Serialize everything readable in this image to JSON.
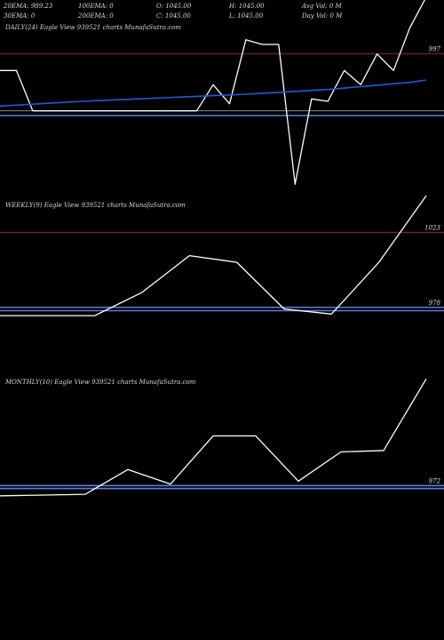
{
  "header": {
    "row1": [
      {
        "label": "20EMA: 989.23"
      },
      {
        "label": "100EMA: 0"
      },
      {
        "label": "O: 1045.00"
      },
      {
        "label": "H: 1045.00"
      },
      {
        "label": "Avg Vol: 0  M"
      }
    ],
    "row2": [
      {
        "label": "30EMA: 0"
      },
      {
        "label": "200EMA: 0"
      },
      {
        "label": "C: 1045.00"
      },
      {
        "label": "L: 1045.00"
      },
      {
        "label": "Day Vol: 0  M"
      }
    ]
  },
  "colors": {
    "background": "#000000",
    "price_line": "#ffffff",
    "ema_line": "#1e5bd6",
    "level_line": "#8b2a1a",
    "base_line": "#5a7fd8",
    "grey_line": "#8a8a8a"
  },
  "chart_data": [
    {
      "type": "line",
      "title": "DAILY(24) Eagle  View  939521 charts MunafaSutra.com",
      "ylim": [
        935,
        1010
      ],
      "x": [
        0,
        1,
        2,
        3,
        4,
        5,
        6,
        7,
        8,
        9,
        10,
        11,
        12,
        13,
        14,
        15,
        16,
        17,
        18,
        19,
        20,
        21,
        22,
        23,
        24,
        25,
        26
      ],
      "series": [
        {
          "values": [
            990,
            990,
            973,
            973,
            973,
            973,
            973,
            973,
            973,
            973,
            973,
            973,
            973,
            984,
            976,
            1003,
            1001,
            1001,
            942,
            978,
            977,
            990,
            984,
            997,
            990,
            1008,
            1021
          ]
        },
        {
          "values": [
            975,
            975.4,
            975.8,
            976.2,
            976.6,
            977,
            977.3,
            977.6,
            977.9,
            978.2,
            978.5,
            978.8,
            979.1,
            979.4,
            979.7,
            980,
            980.4,
            980.8,
            981.2,
            981.6,
            982,
            982.6,
            983.2,
            983.8,
            984.4,
            985,
            986
          ]
        }
      ],
      "hlines": [
        {
          "value": 997,
          "label": "997",
          "style": "level"
        },
        {
          "value": 973,
          "style": "grey"
        },
        {
          "value": 971,
          "style": "base"
        }
      ]
    },
    {
      "type": "line",
      "title": "WEEKLY(9) Eagle  View  939521 charts MunafaSutra.com",
      "ylim": [
        964,
        1044
      ],
      "x": [
        0,
        1,
        2,
        3,
        4,
        5,
        6,
        7,
        8,
        9
      ],
      "series": [
        {
          "values": [
            973,
            973,
            973,
            987,
            1009,
            1005,
            977,
            974,
            1005,
            1045
          ]
        }
      ],
      "hlines": [
        {
          "value": 1023,
          "label": "1023",
          "style": "level"
        },
        {
          "value": 978,
          "style": "base"
        },
        {
          "value": 976,
          "style": "base"
        }
      ],
      "labels": [
        {
          "value": 978,
          "label": "978"
        }
      ]
    },
    {
      "type": "line",
      "title": "MONTHLY(10) Eagle  View  939521 charts MunafaSutra.com",
      "ylim": [
        960,
        1050
      ],
      "x": [
        0,
        1,
        2,
        3,
        4,
        5,
        6,
        7,
        8,
        9,
        10
      ],
      "series": [
        {
          "values": [
            965,
            965.5,
            966,
            983,
            973,
            1006,
            1006,
            975,
            995,
            996,
            1045
          ]
        }
      ],
      "hlines": [
        {
          "value": 972,
          "style": "base"
        },
        {
          "value": 970,
          "style": "base"
        }
      ],
      "labels": [
        {
          "value": 972,
          "label": "972"
        }
      ]
    }
  ]
}
